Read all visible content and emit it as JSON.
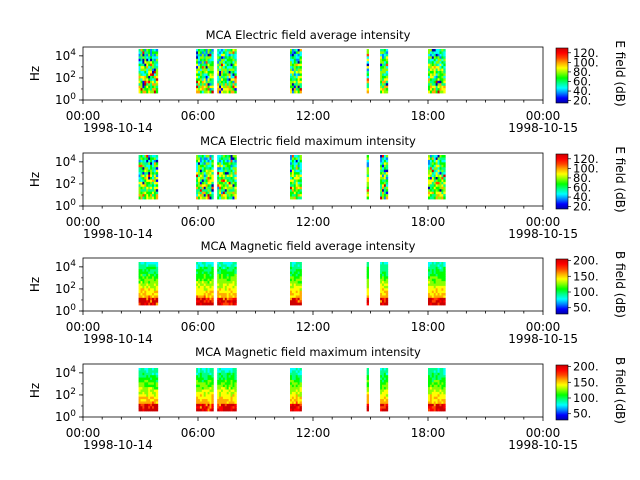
{
  "colorscale": [
    "#0000aa",
    "#0000ff",
    "#0088ff",
    "#00ffff",
    "#00ff88",
    "#00ff00",
    "#88ff00",
    "#ffff00",
    "#ffaa00",
    "#ff4400",
    "#ff0000",
    "#cc0000"
  ],
  "xaxis": {
    "ticks": [
      "00:00",
      "06:00",
      "12:00",
      "18:00",
      "00:00"
    ],
    "tick_hours": [
      0,
      6,
      12,
      18,
      24
    ],
    "start_date": "1998-10-14",
    "end_date": "1998-10-15"
  },
  "yaxis": {
    "label": "Hz",
    "ticks": [
      "10^0",
      "10^2",
      "10^4"
    ],
    "tick_exponents": [
      0,
      2,
      4
    ],
    "range_exponents": [
      0,
      4.8
    ]
  },
  "chart_data": [
    {
      "type": "heatmap",
      "title": "MCA  Electric field average intensity",
      "ylabel": "Hz",
      "colorbar_label": "E field (dB)",
      "colorbar_ticks": [
        20,
        40,
        60,
        80,
        100,
        120
      ],
      "colorbar_range": [
        15,
        130
      ],
      "segments_hours": [
        [
          2.9,
          3.9
        ],
        [
          5.9,
          6.4
        ],
        [
          6.4,
          6.8
        ],
        [
          7.0,
          8.0
        ],
        [
          10.8,
          11.4
        ],
        [
          14.8,
          14.9
        ],
        [
          15.5,
          15.9
        ],
        [
          18.0,
          18.9
        ]
      ]
    },
    {
      "type": "heatmap",
      "title": "MCA  Electric field maximum intensity",
      "ylabel": "Hz",
      "colorbar_label": "E field (dB)",
      "colorbar_ticks": [
        20,
        40,
        60,
        80,
        100,
        120
      ],
      "colorbar_range": [
        15,
        130
      ],
      "segments_hours": [
        [
          2.9,
          3.9
        ],
        [
          5.9,
          6.4
        ],
        [
          6.4,
          6.8
        ],
        [
          7.0,
          8.0
        ],
        [
          10.8,
          11.4
        ],
        [
          14.8,
          14.9
        ],
        [
          15.5,
          15.9
        ],
        [
          18.0,
          18.9
        ]
      ]
    },
    {
      "type": "heatmap",
      "title": "MCA  Magnetic field average intensity",
      "ylabel": "Hz",
      "colorbar_label": "B field (dB)",
      "colorbar_ticks": [
        50,
        100,
        150,
        200
      ],
      "colorbar_range": [
        30,
        205
      ],
      "segments_hours": [
        [
          2.9,
          3.9
        ],
        [
          5.9,
          6.4
        ],
        [
          6.4,
          6.8
        ],
        [
          7.0,
          8.0
        ],
        [
          10.8,
          11.4
        ],
        [
          14.8,
          14.9
        ],
        [
          15.5,
          15.9
        ],
        [
          18.0,
          18.9
        ]
      ]
    },
    {
      "type": "heatmap",
      "title": "MCA  Magnetic field maximum intensity",
      "ylabel": "Hz",
      "colorbar_label": "B field (dB)",
      "colorbar_ticks": [
        50,
        100,
        150,
        200
      ],
      "colorbar_range": [
        30,
        205
      ],
      "segments_hours": [
        [
          2.9,
          3.9
        ],
        [
          5.9,
          6.4
        ],
        [
          6.4,
          6.8
        ],
        [
          7.0,
          8.0
        ],
        [
          10.8,
          11.4
        ],
        [
          14.8,
          14.9
        ],
        [
          15.5,
          15.9
        ],
        [
          18.0,
          18.9
        ]
      ]
    }
  ]
}
